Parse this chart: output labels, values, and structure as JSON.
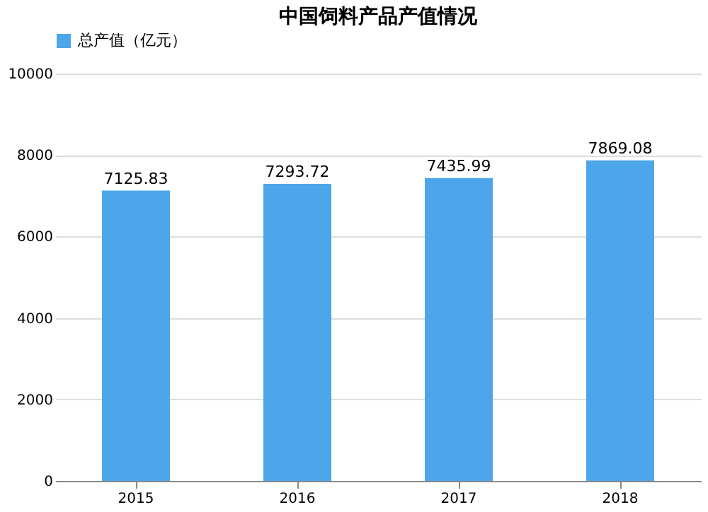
{
  "chart_data": {
    "type": "bar",
    "title": "中国饲料产品产值情况",
    "categories": [
      "2015",
      "2016",
      "2017",
      "2018"
    ],
    "series": [
      {
        "name": "总产值（亿元）",
        "color": "#4ea6ea",
        "values": [
          7125.83,
          7293.72,
          7435.99,
          7869.08
        ]
      }
    ],
    "ylim": [
      0,
      10000
    ],
    "yticks": [
      0,
      2000,
      4000,
      6000,
      8000,
      10000
    ],
    "grid": "y",
    "legend": "top",
    "data_labels": true
  }
}
